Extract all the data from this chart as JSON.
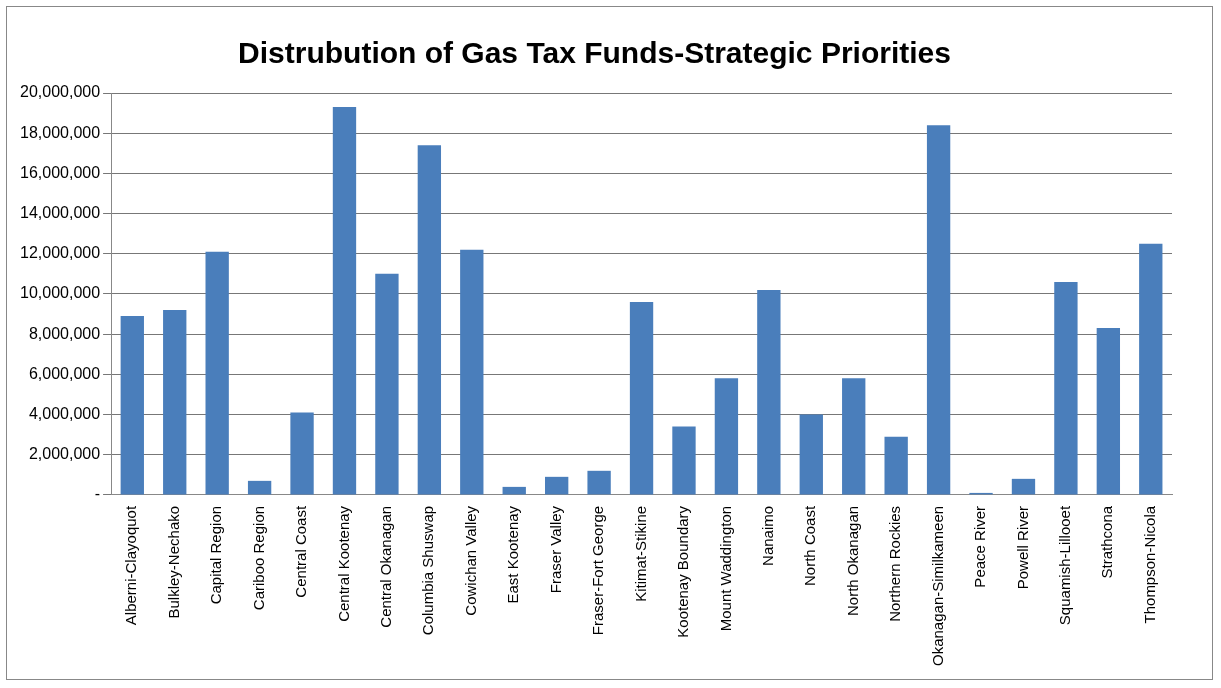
{
  "chart_data": {
    "type": "bar",
    "title": "Distrubution of Gas Tax Funds-Strategic Priorities",
    "categories": [
      "Alberni-Clayoquot",
      "Bulkley-Nechako",
      "Capital Region",
      "Cariboo Region",
      "Central Coast",
      "Central Kootenay",
      "Central Okanagan",
      "Columbia Shuswap",
      "Cowichan Valley",
      "East Kootenay",
      "Fraser Valley",
      "Fraser-Fort George",
      "Kitimat-Stikine",
      "Kootenay Boundary",
      "Mount Waddington",
      "Nanaimo",
      "North Coast",
      "North Okanagan",
      "Northern Rockies",
      "Okanagan-Similkameen",
      "Peace River",
      "Powell River",
      "Squamish-Lillooet",
      "Strathcona",
      "Thompson-Nicola"
    ],
    "values": [
      8900000,
      9200000,
      12100000,
      700000,
      4100000,
      19300000,
      11000000,
      17400000,
      12200000,
      400000,
      900000,
      1200000,
      9600000,
      3400000,
      5800000,
      10200000,
      4000000,
      5800000,
      2900000,
      18400000,
      100000,
      800000,
      10600000,
      8300000,
      12500000
    ],
    "color": "#4a7ebb",
    "ylim": [
      0,
      20000000
    ],
    "yticks": [
      {
        "value": 0,
        "label": "-"
      },
      {
        "value": 2000000,
        "label": "2,000,000"
      },
      {
        "value": 4000000,
        "label": "4,000,000"
      },
      {
        "value": 6000000,
        "label": "6,000,000"
      },
      {
        "value": 8000000,
        "label": "8,000,000"
      },
      {
        "value": 10000000,
        "label": "10,000,000"
      },
      {
        "value": 12000000,
        "label": "12,000,000"
      },
      {
        "value": 14000000,
        "label": "14,000,000"
      },
      {
        "value": 16000000,
        "label": "16,000,000"
      },
      {
        "value": 18000000,
        "label": "18,000,000"
      },
      {
        "value": 20000000,
        "label": "20,000,000"
      }
    ],
    "grid": "y"
  }
}
